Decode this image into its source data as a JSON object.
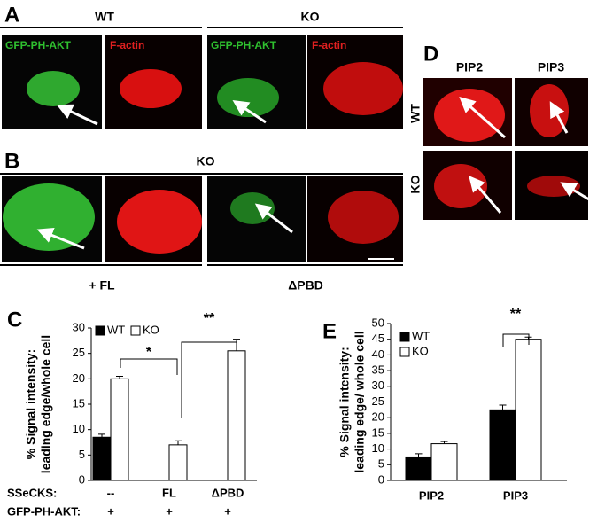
{
  "panels": {
    "A": {
      "letter": "A",
      "wt": "WT",
      "ko": "KO",
      "gfp1": "GFP-PH-AKT",
      "actin1": "F-actin",
      "gfp2": "GFP-PH-AKT",
      "actin2": "F-actin"
    },
    "B": {
      "letter": "B",
      "ko": "KO",
      "fl": "+ FL",
      "pbd": "ΔPBD"
    },
    "D": {
      "letter": "D",
      "pip2": "PIP2",
      "pip3": "PIP3",
      "wt": "WT",
      "ko": "KO"
    },
    "C": {
      "letter": "C"
    },
    "E": {
      "letter": "E"
    }
  },
  "chart_data": [
    {
      "type": "bar",
      "ylabel": [
        "% Signal intensity:",
        "leading edge/whole cell"
      ],
      "ylim": [
        0,
        30
      ],
      "yticks": [
        0,
        5,
        10,
        15,
        20,
        25,
        30
      ],
      "categories": [
        "--",
        "FL",
        "ΔPBD"
      ],
      "row_labels": [
        "SSeCKS:",
        "GFP-PH-AKT:"
      ],
      "second_row": [
        "+",
        "+",
        "+"
      ],
      "series": [
        {
          "name": "WT",
          "color": "#000000",
          "values": [
            8.5,
            null,
            null
          ],
          "errors": [
            0.6,
            null,
            null
          ]
        },
        {
          "name": "KO",
          "color": "#ffffff",
          "values": [
            20,
            7,
            25.5
          ],
          "errors": [
            0.5,
            0.8,
            2.3
          ]
        }
      ],
      "annotations": [
        "*",
        "**"
      ]
    },
    {
      "type": "bar",
      "ylabel": [
        "% Signal intensity:",
        "leading edge/ whole  cell"
      ],
      "ylim": [
        0,
        50
      ],
      "yticks": [
        0,
        5,
        10,
        15,
        20,
        25,
        30,
        35,
        40,
        45,
        50
      ],
      "categories": [
        "PIP2",
        "PIP3"
      ],
      "series": [
        {
          "name": "WT",
          "color": "#000000",
          "values": [
            7.5,
            22.5
          ],
          "errors": [
            1,
            1.5
          ]
        },
        {
          "name": "KO",
          "color": "#ffffff",
          "values": [
            11.7,
            45
          ],
          "errors": [
            0.7,
            0.7
          ]
        }
      ],
      "annotations": [
        "**"
      ]
    }
  ]
}
